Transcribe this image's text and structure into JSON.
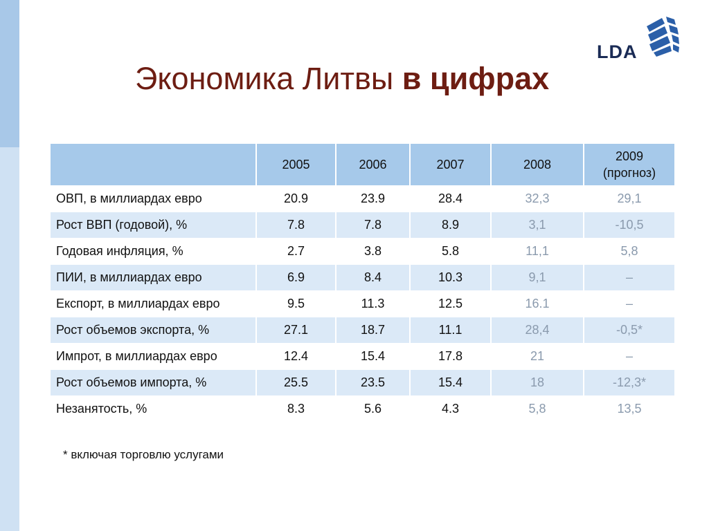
{
  "logo": {
    "text": "LDA"
  },
  "title": {
    "regular": "Экономика Литвы ",
    "bold": "в цифрах"
  },
  "table": {
    "header": {
      "label": "",
      "y2005": "2005",
      "y2006": "2006",
      "y2007": "2007",
      "y2008": "2008",
      "y2009_line1": "2009",
      "y2009_line2": "(прогноз)"
    },
    "rows": [
      {
        "label": "ОВП, в миллиардах евро",
        "v2005": "20.9",
        "v2006": "23.9",
        "v2007": "28.4",
        "v2008": "32,3",
        "v2009": "29,1"
      },
      {
        "label": "Рост ВВП (годовой), %",
        "v2005": "7.8",
        "v2006": "7.8",
        "v2007": "8.9",
        "v2008": "3,1",
        "v2009": "-10,5"
      },
      {
        "label": "Годовая инфляция, %",
        "v2005": "2.7",
        "v2006": "3.8",
        "v2007": "5.8",
        "v2008": "11,1",
        "v2009": "5,8"
      },
      {
        "label": "ПИИ, в миллиардах евро",
        "v2005": "6.9",
        "v2006": "8.4",
        "v2007": "10.3",
        "v2008": "9,1",
        "v2009": "–"
      },
      {
        "label": "Експорт, в миллиардах евро",
        "v2005": "9.5",
        "v2006": "11.3",
        "v2007": "12.5",
        "v2008": "16.1",
        "v2009": "–"
      },
      {
        "label": "Рост объемов экспорта, %",
        "v2005": "27.1",
        "v2006": "18.7",
        "v2007": "11.1",
        "v2008": "28,4",
        "v2009": "-0,5*"
      },
      {
        "label": "Импрот, в миллиардах евро",
        "v2005": "12.4",
        "v2006": "15.4",
        "v2007": "17.8",
        "v2008": "21",
        "v2009": "–"
      },
      {
        "label": "Рост объемов импорта, %",
        "v2005": "25.5",
        "v2006": "23.5",
        "v2007": "15.4",
        "v2008": "18",
        "v2009": "-12,3*"
      },
      {
        "label": "Незанятость, %",
        "v2005": "8.3",
        "v2006": "5.6",
        "v2007": "4.3",
        "v2008": "5,8",
        "v2009": "13,5"
      }
    ]
  },
  "footnote": "* включая торговлю услугами",
  "colors": {
    "title": "#6d1d12",
    "header_bg": "#a6c9ea",
    "row_alt_bg": "#dbe9f7",
    "forecast_text": "#8a9aad",
    "side_bar": "#cfe1f3"
  }
}
